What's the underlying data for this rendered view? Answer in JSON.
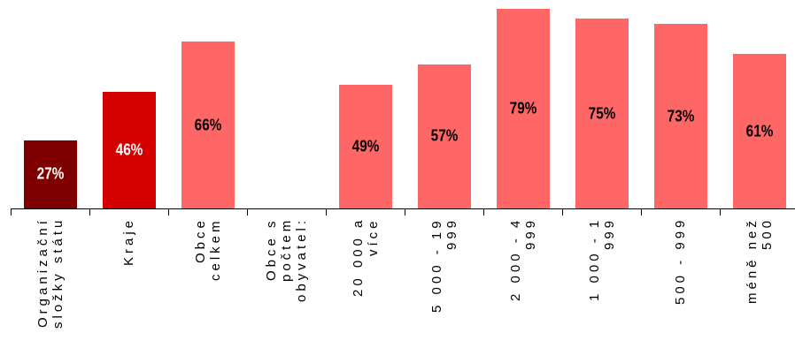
{
  "chart_data": {
    "type": "bar",
    "categories": [
      "Organizační\nsložky státu",
      "Kraje",
      "Obce\ncelkem",
      "Obce s\npočtem\nobyvatel:",
      "20 000 a\nvíce",
      "5 000 - 19\n999",
      "2 000 - 4\n999",
      "1 000 - 1\n999",
      "500 - 999",
      "méně než\n500"
    ],
    "values": [
      27,
      46,
      66,
      null,
      49,
      57,
      79,
      75,
      73,
      61
    ],
    "value_labels": [
      "27%",
      "46%",
      "66%",
      null,
      "49%",
      "57%",
      "79%",
      "75%",
      "73%",
      "61%"
    ],
    "colors": [
      "#7f0000",
      "#d40000",
      "#ff6666",
      "#ff6666",
      "#ff6666",
      "#ff6666",
      "#ff6666",
      "#ff6666",
      "#ff6666",
      "#ff6666"
    ]
  }
}
